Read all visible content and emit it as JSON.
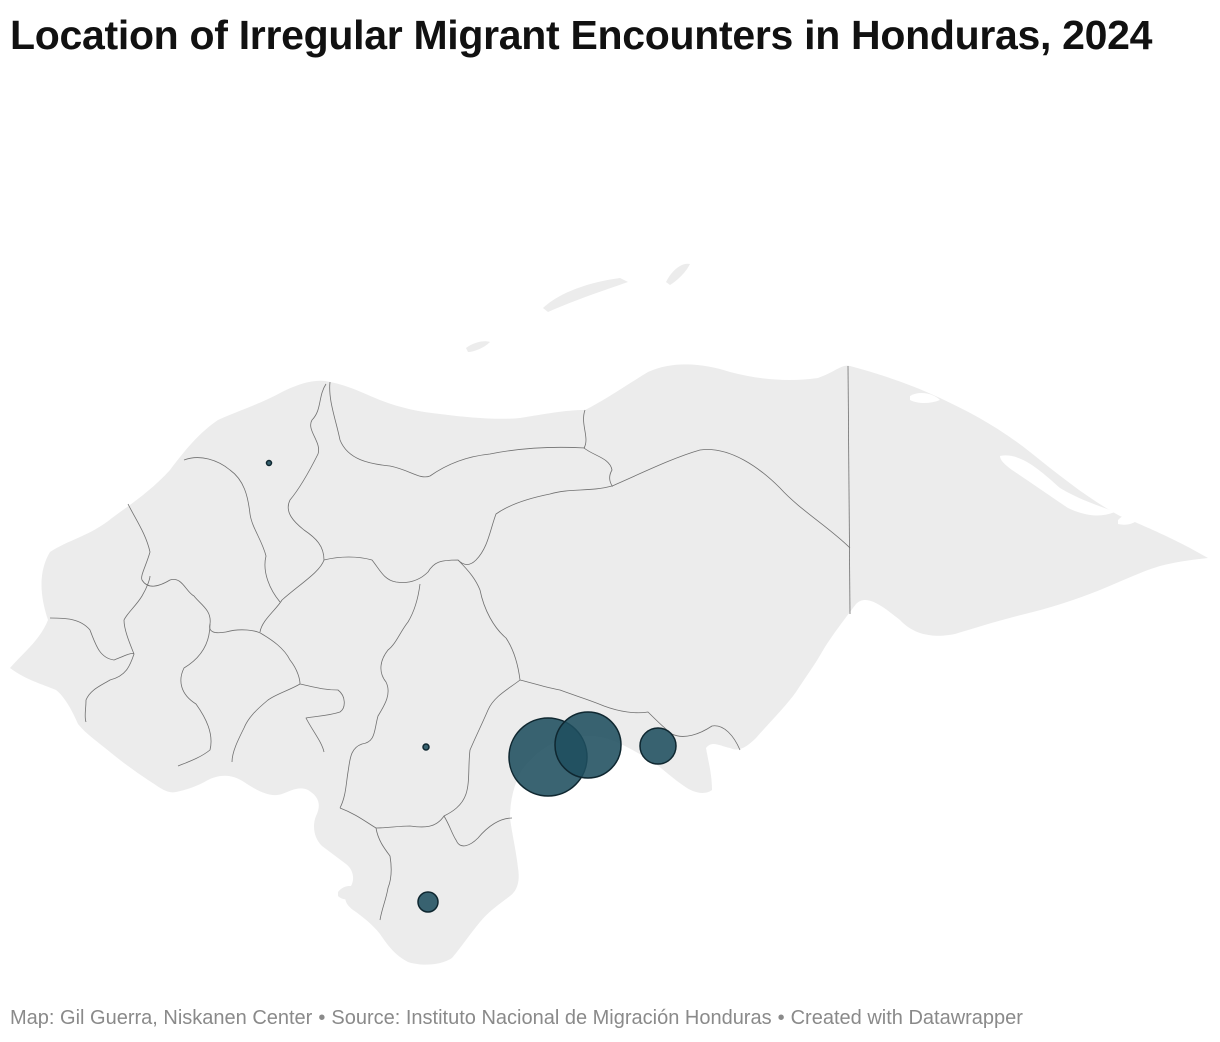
{
  "title": "Location of Irregular Migrant Encounters in Honduras, 2024",
  "footer": {
    "map_credit": "Map: Gil Guerra, Niskanen Center",
    "separator": "•",
    "source": "Source: Instituto Nacional de Migración Honduras",
    "created_with": "Created with Datawrapper"
  },
  "colors": {
    "land_fill": "#ececec",
    "border_stroke": "#707070",
    "bubble_fill": "#1f4e5f",
    "bubble_stroke": "#0f2730",
    "title": "#111111",
    "footer": "#8a8a8a"
  },
  "legend": null
}
